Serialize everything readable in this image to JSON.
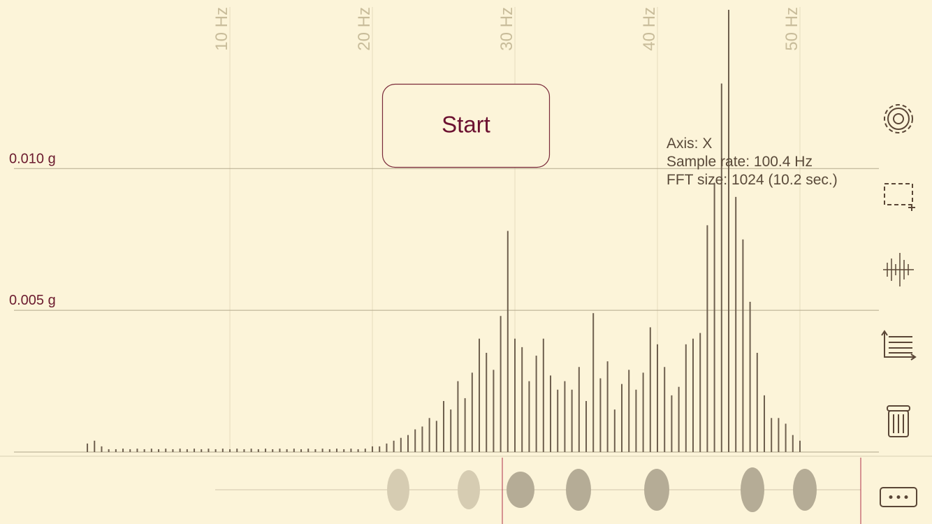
{
  "chart_data": {
    "type": "bar",
    "button": "Start",
    "info": [
      "Axis: X",
      "Sample rate: 100.4 Hz",
      "FFT size: 1024 (10.2 sec.)"
    ],
    "x": [
      0,
      0.5,
      1,
      1.5,
      2,
      2.5,
      3,
      3.5,
      4,
      4.5,
      5,
      5.5,
      6,
      6.5,
      7,
      7.5,
      8,
      8.5,
      9,
      9.5,
      10,
      10.5,
      11,
      11.5,
      12,
      12.5,
      13,
      13.5,
      14,
      14.5,
      15,
      15.5,
      16,
      16.5,
      17,
      17.5,
      18,
      18.5,
      19,
      19.5,
      20,
      20.5,
      21,
      21.5,
      22,
      22.5,
      23,
      23.5,
      24,
      24.5,
      25,
      25.5,
      26,
      26.5,
      27,
      27.5,
      28,
      28.5,
      29,
      29.5,
      30,
      30.5,
      31,
      31.5,
      32,
      32.5,
      33,
      33.5,
      34,
      34.5,
      35,
      35.5,
      36,
      36.5,
      37,
      37.5,
      38,
      38.5,
      39,
      39.5,
      40,
      40.5,
      41,
      41.5,
      42,
      42.5,
      43,
      43.5,
      44,
      44.5,
      45,
      45.5,
      46,
      46.5,
      47,
      47.5,
      48,
      48.5,
      49,
      49.5,
      50
    ],
    "values": [
      0.0003,
      0.0004,
      0.0002,
      0.0001,
      0.0001,
      0.00012,
      0.0001,
      0.00012,
      0.0001,
      0.00012,
      0.0001,
      0.00012,
      0.0001,
      0.00012,
      0.0001,
      0.00012,
      0.0001,
      0.00012,
      0.0001,
      0.00012,
      0.0001,
      0.00012,
      0.0001,
      0.00012,
      0.0001,
      0.00012,
      0.0001,
      0.00012,
      0.0001,
      0.00012,
      0.0001,
      0.00012,
      0.0001,
      0.00012,
      0.0001,
      0.00012,
      0.0001,
      0.00012,
      0.0001,
      0.00012,
      0.0002,
      0.0002,
      0.0003,
      0.0004,
      0.0005,
      0.0006,
      0.0008,
      0.0009,
      0.0012,
      0.0011,
      0.0018,
      0.0015,
      0.0025,
      0.0019,
      0.0028,
      0.004,
      0.0035,
      0.0029,
      0.0048,
      0.0078,
      0.004,
      0.0037,
      0.0025,
      0.0034,
      0.004,
      0.0027,
      0.0022,
      0.0025,
      0.0022,
      0.003,
      0.0018,
      0.0049,
      0.0026,
      0.0032,
      0.0015,
      0.0024,
      0.0029,
      0.0022,
      0.0028,
      0.0044,
      0.0038,
      0.003,
      0.002,
      0.0023,
      0.0038,
      0.004,
      0.0042,
      0.008,
      0.0095,
      0.013,
      0.0156,
      0.009,
      0.0075,
      0.0053,
      0.0035,
      0.002,
      0.0012,
      0.0012,
      0.001,
      0.0006,
      0.0004
    ],
    "color": "#6e5f4e",
    "xlim": [
      -5.15,
      55.54
    ],
    "xticks": [
      {
        "value": 10,
        "label": "10 Hz"
      },
      {
        "value": 20,
        "label": "20 Hz"
      },
      {
        "value": 30,
        "label": "30 Hz"
      },
      {
        "value": 40,
        "label": "40 Hz"
      },
      {
        "value": 50,
        "label": "50 Hz"
      }
    ],
    "ylim": [
      0,
      0.0157
    ],
    "yticks": [
      {
        "value": 0.005,
        "label": "0.005 g"
      },
      {
        "value": 0.01,
        "label": "0.010 g"
      }
    ],
    "grid": true
  }
}
